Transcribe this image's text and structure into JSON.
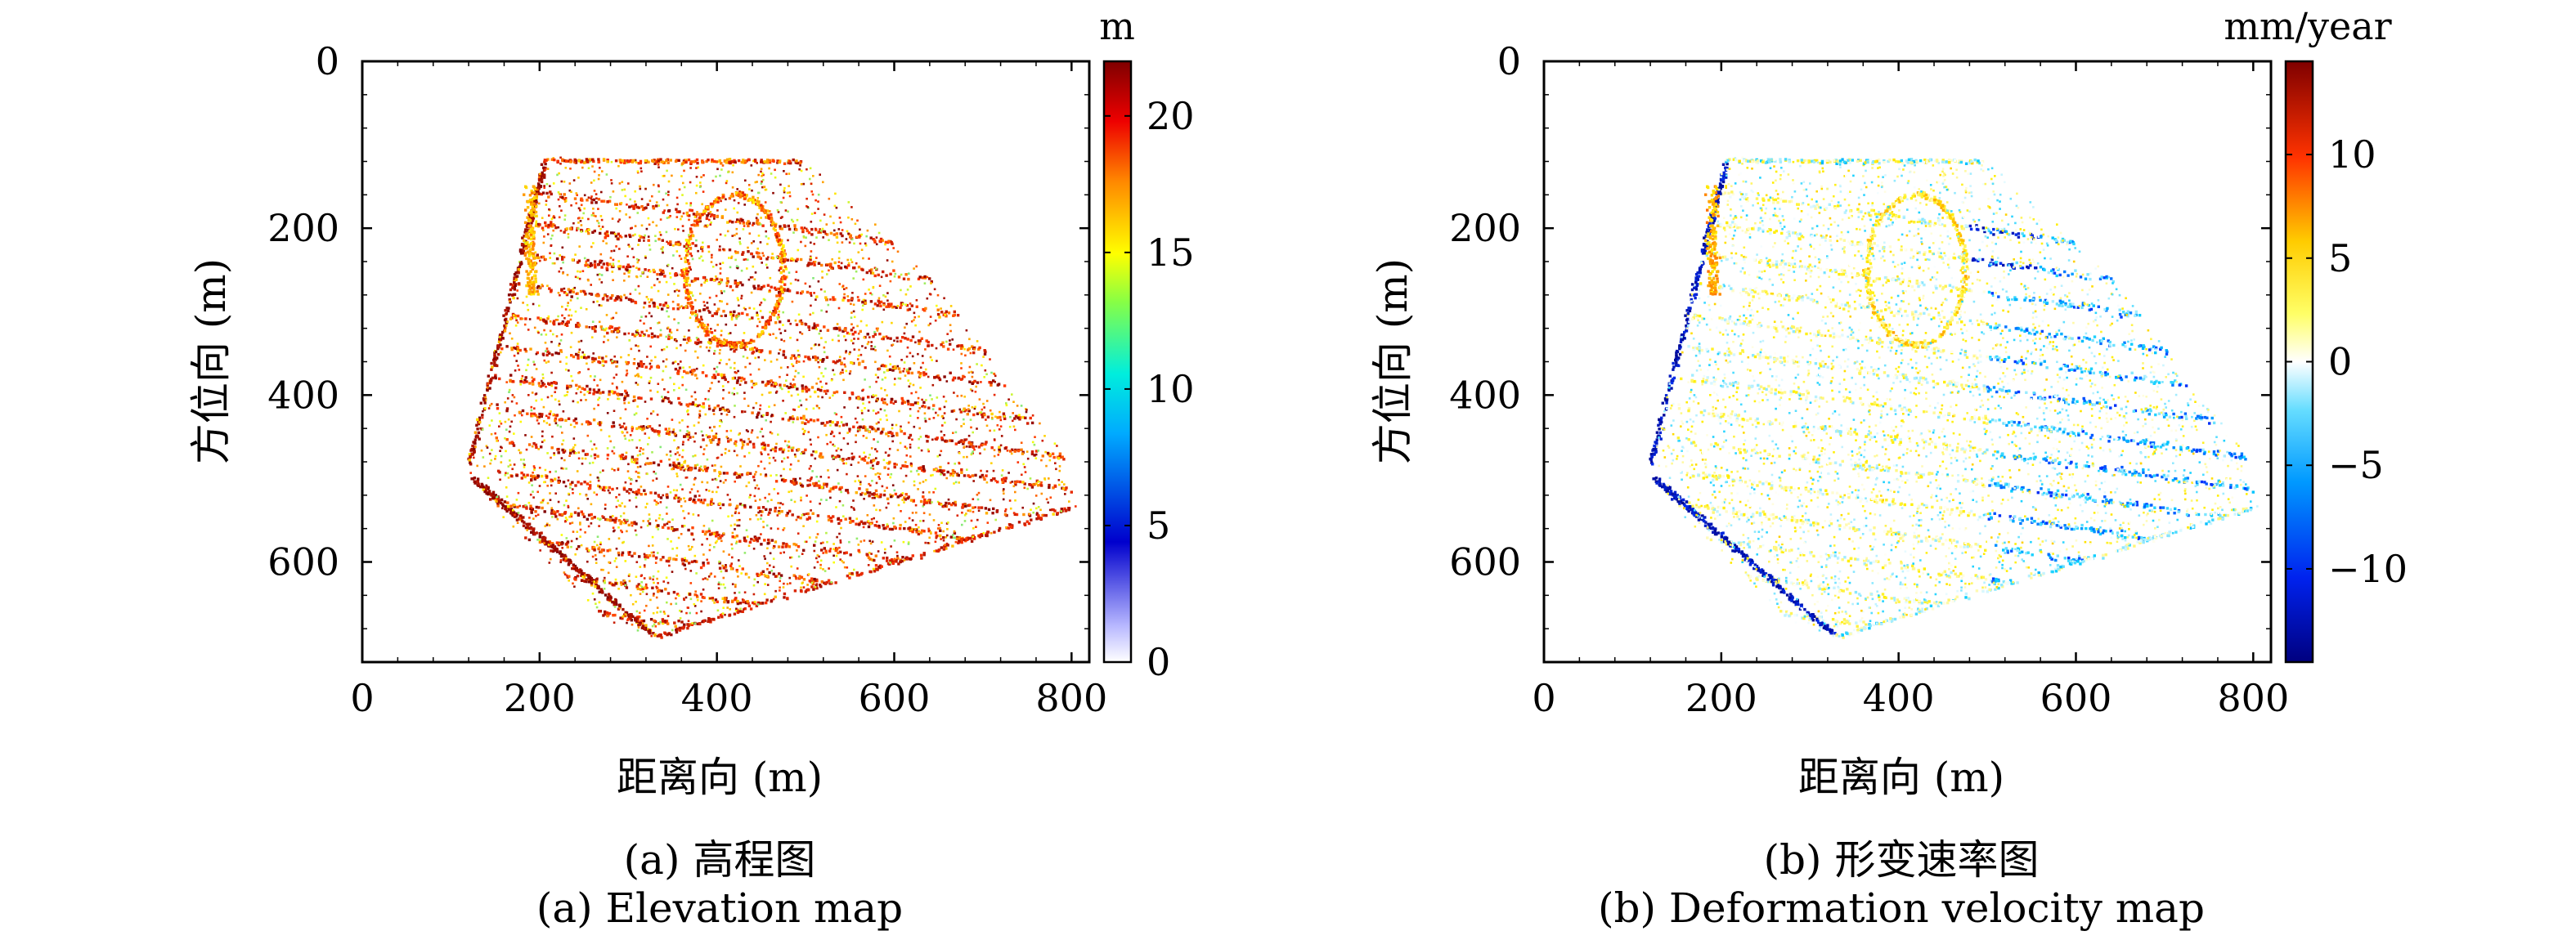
{
  "chart_data": [
    {
      "type": "scatter",
      "title": "",
      "xlabel": "距离向 (m)",
      "ylabel": "方位向 (m)",
      "xlim": [
        0,
        820
      ],
      "ylim": [
        0,
        720
      ],
      "y_inverted": true,
      "x_ticks": [
        "0",
        "200",
        "400",
        "600",
        "800"
      ],
      "y_ticks": [
        "0",
        "200",
        "400",
        "600"
      ],
      "grid": false,
      "colorbar": {
        "label": "m",
        "range": [
          0,
          22
        ],
        "ticks": [
          "0",
          "5",
          "10",
          "15",
          "20"
        ],
        "colormap": [
          "#ffffff",
          "#0000cd",
          "#00d0ff",
          "#ffff00",
          "#ff3300",
          "#7f0000"
        ]
      },
      "caption_cn": "(a) 高程图",
      "caption_en": "(a) Elevation map"
    },
    {
      "type": "scatter",
      "title": "",
      "xlabel": "距离向 (m)",
      "ylabel": "方位向 (m)",
      "xlim": [
        0,
        820
      ],
      "ylim": [
        0,
        720
      ],
      "y_inverted": true,
      "x_ticks": [
        "0",
        "200",
        "400",
        "600",
        "800"
      ],
      "y_ticks": [
        "0",
        "200",
        "400",
        "600"
      ],
      "grid": false,
      "colorbar": {
        "label": "mm/year",
        "range": [
          -14.5,
          14.5
        ],
        "ticks": [
          "10",
          "5",
          "0",
          "−5",
          "−10"
        ],
        "colormap": [
          "#00007f",
          "#0033ff",
          "#00ccff",
          "#ffffff",
          "#ffee00",
          "#ff4400",
          "#7f0000"
        ]
      },
      "caption_cn": "(b) 形变速率图",
      "caption_en": "(b) Deformation velocity map"
    }
  ]
}
